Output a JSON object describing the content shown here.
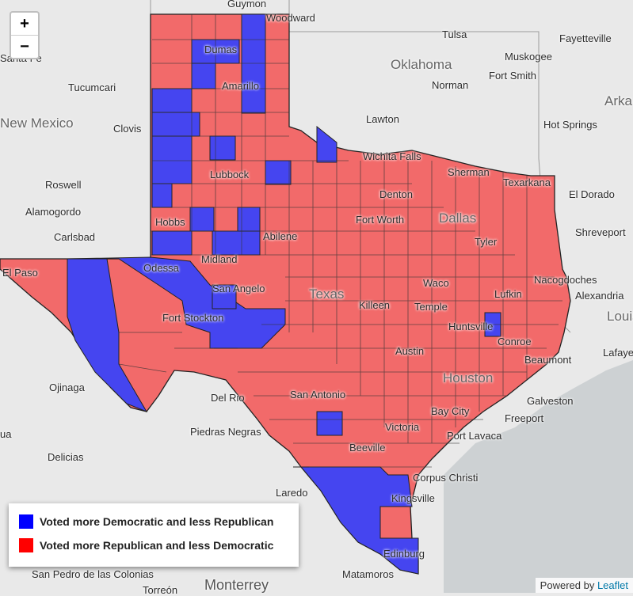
{
  "map": {
    "colors": {
      "water": "#cdd1d3",
      "land": "#e9e9e9",
      "republican": "#f26a6a",
      "democratic": "#4545f0",
      "border": "#000000"
    },
    "cities": [
      "Guymon",
      "Woodward",
      "Tulsa",
      "Fayetteville",
      "Santa Fe",
      "Dumas",
      "Muskogee",
      "Oklahoma",
      "Amarillo",
      "Tucumcari",
      "Norman",
      "Fort Smith",
      "Arka",
      "New Mexico",
      "Lawton",
      "Clovis",
      "Hot Springs",
      "Wichita Falls",
      "Lubbock",
      "Sherman",
      "Texarkana",
      "Roswell",
      "Denton",
      "El Dorado",
      "Alamogordo",
      "Dallas",
      "Hobbs",
      "Fort Worth",
      "Shreveport",
      "Carlsbad",
      "Abilene",
      "Tyler",
      "Odessa",
      "Midland",
      "El Paso",
      "San Angelo",
      "Nacogdoches",
      "Texas",
      "Waco",
      "Alexandria",
      "Lufkin",
      "Louis",
      "Killeen",
      "Temple",
      "Fort Stockton",
      "Huntsville",
      "Conroe",
      "Lafaye",
      "Austin",
      "Beaumont",
      "Houston",
      "Ojinaga",
      "Galveston",
      "Del Rio",
      "San Antonio",
      "Bay City",
      "Freeport",
      "Piedras Negras",
      "Victoria",
      "Port Lavaca",
      "Delicias",
      "Beeville",
      "Corpus Christi",
      "Laredo",
      "Kingsville",
      "Edinburg",
      "San Pedro de las Colonias",
      "Matamoros",
      "Monterrey",
      "Torreón",
      "ua"
    ]
  },
  "zoom": {
    "in": "+",
    "out": "−"
  },
  "legend": {
    "items": [
      {
        "label": "Voted more Democratic and less Republican",
        "color": "#0000ff"
      },
      {
        "label": "Voted more Republican and less Democratic",
        "color": "#ff0000"
      }
    ]
  },
  "attribution": {
    "prefix": "Powered by",
    "link": "Leaflet"
  }
}
